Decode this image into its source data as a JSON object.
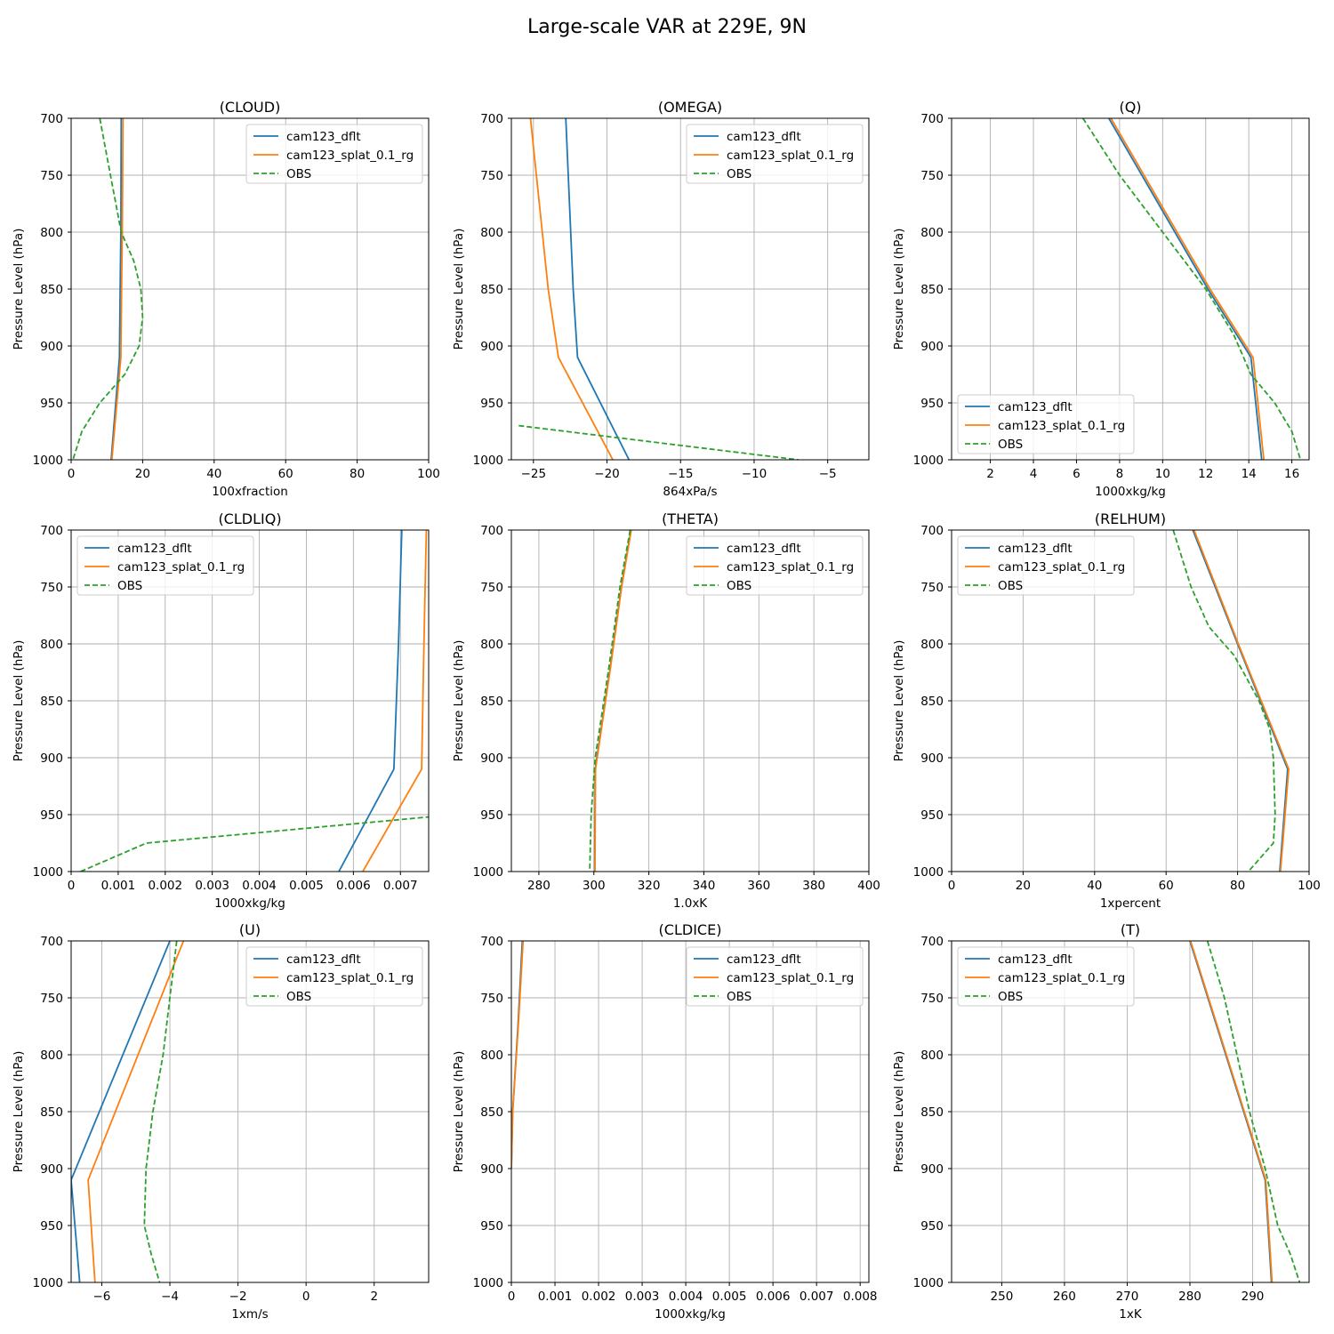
{
  "figure_title": "Large-scale VAR at 229E, 9N",
  "legend": [
    "cam123_dflt",
    "cam123_splat_0.1_rg",
    "OBS"
  ],
  "series_colors": {
    "cam123_dflt": "#1f77b4",
    "cam123_splat_0.1_rg": "#ff7f0e",
    "OBS": "#2ca02c"
  },
  "chart_data": [
    {
      "type": "line",
      "title": "(CLOUD)",
      "xlabel": "100xfraction",
      "ylabel": "Pressure Level (hPa)",
      "xlim": [
        0,
        100
      ],
      "ylim": [
        1000,
        700
      ],
      "grid": true,
      "legend_position": "upper-right",
      "xticks": [
        0,
        20,
        40,
        60,
        80,
        100
      ],
      "yticks": [
        700,
        750,
        800,
        850,
        900,
        950,
        1000
      ],
      "series": [
        {
          "name": "cam123_dflt",
          "x": [
            14,
            13.9,
            13.7,
            13.5,
            11.2
          ],
          "y": [
            700,
            800,
            850,
            910,
            1000
          ]
        },
        {
          "name": "cam123_splat_0.1_rg",
          "x": [
            14.5,
            14.3,
            14.1,
            13.9,
            11.4
          ],
          "y": [
            700,
            800,
            850,
            910,
            1000
          ]
        },
        {
          "name": "OBS",
          "x": [
            8,
            11,
            14,
            17.5,
            19.5,
            20,
            19,
            15,
            8,
            3,
            0.5
          ],
          "y": [
            700,
            750,
            800,
            825,
            850,
            875,
            900,
            925,
            950,
            975,
            1000
          ]
        }
      ]
    },
    {
      "type": "line",
      "title": "(OMEGA)",
      "xlabel": "864xPa/s",
      "ylabel": "Pressure Level (hPa)",
      "xlim": [
        -26.5,
        -2.2
      ],
      "ylim": [
        1000,
        700
      ],
      "grid": true,
      "legend_position": "upper-right",
      "xticks": [
        -25,
        -20,
        -15,
        -10,
        -5
      ],
      "yticks": [
        700,
        750,
        800,
        850,
        900,
        950,
        1000
      ],
      "series": [
        {
          "name": "cam123_dflt",
          "x": [
            -22.8,
            -22.3,
            -22,
            -18.5
          ],
          "y": [
            700,
            850,
            910,
            1000
          ]
        },
        {
          "name": "cam123_splat_0.1_rg",
          "x": [
            -25.2,
            -24,
            -23.3,
            -19.6
          ],
          "y": [
            700,
            850,
            910,
            1000
          ]
        },
        {
          "name": "OBS",
          "x": [
            -26,
            -7
          ],
          "y": [
            970,
            1000
          ]
        }
      ]
    },
    {
      "type": "line",
      "title": "(Q)",
      "xlabel": "1000xkg/kg",
      "ylabel": "Pressure Level (hPa)",
      "xlim": [
        0.2,
        16.8
      ],
      "ylim": [
        1000,
        700
      ],
      "grid": true,
      "legend_position": "lower-left",
      "xticks": [
        2,
        4,
        6,
        8,
        10,
        12,
        14,
        16
      ],
      "yticks": [
        700,
        750,
        800,
        850,
        900,
        950,
        1000
      ],
      "series": [
        {
          "name": "cam123_dflt",
          "x": [
            7.5,
            9.8,
            12.1,
            14.1,
            14.6
          ],
          "y": [
            700,
            775,
            850,
            910,
            1000
          ]
        },
        {
          "name": "cam123_splat_0.1_rg",
          "x": [
            7.6,
            9.9,
            12.2,
            14.2,
            14.7
          ],
          "y": [
            700,
            775,
            850,
            910,
            1000
          ]
        },
        {
          "name": "OBS",
          "x": [
            6.3,
            8,
            10,
            12,
            13.3,
            14.1,
            15.2,
            16,
            16.4
          ],
          "y": [
            700,
            750,
            800,
            850,
            890,
            925,
            950,
            975,
            1000
          ]
        }
      ]
    },
    {
      "type": "line",
      "title": "(CLDLIQ)",
      "xlabel": "1000xkg/kg",
      "ylabel": "Pressure Level (hPa)",
      "xlim": [
        0,
        0.0076
      ],
      "ylim": [
        1000,
        700
      ],
      "grid": true,
      "legend_position": "upper-left",
      "xticks": [
        0,
        0.001,
        0.002,
        0.003,
        0.004,
        0.005,
        0.006,
        0.007
      ],
      "yticks": [
        700,
        750,
        800,
        850,
        900,
        950,
        1000
      ],
      "series": [
        {
          "name": "cam123_dflt",
          "x": [
            0.00703,
            0.00696,
            0.00686,
            0.00569
          ],
          "y": [
            700,
            800,
            910,
            1000
          ]
        },
        {
          "name": "cam123_splat_0.1_rg",
          "x": [
            0.00755,
            0.0075,
            0.00745,
            0.0062
          ],
          "y": [
            700,
            800,
            910,
            1000
          ]
        },
        {
          "name": "OBS",
          "x": [
            0.0002,
            0.0016,
            0.0076
          ],
          "y": [
            1000,
            975,
            952
          ]
        }
      ]
    },
    {
      "type": "line",
      "title": "(THETA)",
      "xlabel": "1.0xK",
      "ylabel": "Pressure Level (hPa)",
      "xlim": [
        270,
        400
      ],
      "ylim": [
        1000,
        700
      ],
      "grid": true,
      "legend_position": "upper-right",
      "xticks": [
        280,
        300,
        320,
        340,
        360,
        380,
        400
      ],
      "yticks": [
        700,
        750,
        800,
        850,
        900,
        950,
        1000
      ],
      "series": [
        {
          "name": "cam123_dflt",
          "x": [
            313.5,
            310,
            306,
            300.5,
            300.3
          ],
          "y": [
            700,
            750,
            820,
            910,
            1000
          ]
        },
        {
          "name": "cam123_splat_0.1_rg",
          "x": [
            313.6,
            310.1,
            306.1,
            300.6,
            300.4
          ],
          "y": [
            700,
            750,
            820,
            910,
            1000
          ]
        },
        {
          "name": "OBS",
          "x": [
            313.2,
            309.5,
            305.5,
            300.5,
            299,
            298.5
          ],
          "y": [
            700,
            750,
            820,
            900,
            950,
            1000
          ]
        }
      ]
    },
    {
      "type": "line",
      "title": "(RELHUM)",
      "xlabel": "1xpercent",
      "ylabel": "Pressure Level (hPa)",
      "xlim": [
        0,
        100
      ],
      "ylim": [
        1000,
        700
      ],
      "grid": true,
      "legend_position": "upper-left",
      "xticks": [
        0,
        20,
        40,
        60,
        80,
        100
      ],
      "yticks": [
        700,
        750,
        800,
        850,
        900,
        950,
        1000
      ],
      "series": [
        {
          "name": "cam123_dflt",
          "x": [
            67.5,
            80,
            94,
            91.8
          ],
          "y": [
            700,
            800,
            910,
            1000
          ]
        },
        {
          "name": "cam123_splat_0.1_rg",
          "x": [
            67.8,
            80.2,
            94.3,
            92
          ],
          "y": [
            700,
            800,
            910,
            1000
          ]
        },
        {
          "name": "OBS",
          "x": [
            62,
            67,
            72,
            79,
            86,
            89,
            90,
            90.5,
            90,
            83
          ],
          "y": [
            700,
            750,
            785,
            810,
            850,
            875,
            900,
            950,
            975,
            1000
          ]
        }
      ]
    },
    {
      "type": "line",
      "title": "(U)",
      "xlabel": "1xm/s",
      "ylabel": "Pressure Level (hPa)",
      "xlim": [
        -6.9,
        3.6
      ],
      "ylim": [
        1000,
        700
      ],
      "grid": true,
      "legend_position": "upper-right",
      "xticks": [
        -6,
        -4,
        -2,
        0,
        2
      ],
      "yticks": [
        700,
        750,
        800,
        850,
        900,
        950,
        1000
      ],
      "series": [
        {
          "name": "cam123_dflt",
          "x": [
            -4.0,
            -6.9,
            -6.65
          ],
          "y": [
            700,
            910,
            1000
          ]
        },
        {
          "name": "cam123_splat_0.1_rg",
          "x": [
            -3.6,
            -6.4,
            -6.2
          ],
          "y": [
            700,
            910,
            1000
          ]
        },
        {
          "name": "OBS",
          "x": [
            -3.8,
            -4.0,
            -4.2,
            -4.5,
            -4.7,
            -4.75,
            -4.55,
            -4.3
          ],
          "y": [
            700,
            750,
            800,
            850,
            900,
            950,
            975,
            1000
          ]
        }
      ]
    },
    {
      "type": "line",
      "title": "(CLDICE)",
      "xlabel": "1000xkg/kg",
      "ylabel": "Pressure Level (hPa)",
      "xlim": [
        0,
        0.0082
      ],
      "ylim": [
        1000,
        700
      ],
      "grid": true,
      "legend_position": "upper-right",
      "xticks": [
        0,
        0.001,
        0.002,
        0.003,
        0.004,
        0.005,
        0.006,
        0.007,
        0.008
      ],
      "yticks": [
        700,
        750,
        800,
        850,
        900,
        950,
        1000
      ],
      "series": [
        {
          "name": "cam123_dflt",
          "x": [
            0.00025,
            0.00015,
            3e-05,
            0
          ],
          "y": [
            700,
            775,
            850,
            900
          ]
        },
        {
          "name": "cam123_splat_0.1_rg",
          "x": [
            0.00027,
            0.00016,
            3e-05,
            0
          ],
          "y": [
            700,
            775,
            850,
            900
          ]
        },
        {
          "name": "OBS",
          "x": [],
          "y": []
        }
      ]
    },
    {
      "type": "line",
      "title": "(T)",
      "xlabel": "1xK",
      "ylabel": "Pressure Level (hPa)",
      "xlim": [
        242,
        299
      ],
      "ylim": [
        1000,
        700
      ],
      "grid": true,
      "legend_position": "upper-left",
      "xticks": [
        250,
        260,
        270,
        280,
        290
      ],
      "yticks": [
        700,
        750,
        800,
        850,
        900,
        950,
        1000
      ],
      "series": [
        {
          "name": "cam123_dflt",
          "x": [
            280,
            292,
            293
          ],
          "y": [
            700,
            910,
            1000
          ]
        },
        {
          "name": "cam123_splat_0.1_rg",
          "x": [
            280.1,
            292.1,
            293.1
          ],
          "y": [
            700,
            910,
            1000
          ]
        },
        {
          "name": "OBS",
          "x": [
            282.8,
            285.5,
            287.5,
            289.5,
            292,
            294,
            296,
            297.5
          ],
          "y": [
            700,
            750,
            800,
            850,
            900,
            950,
            975,
            1000
          ]
        }
      ]
    }
  ]
}
